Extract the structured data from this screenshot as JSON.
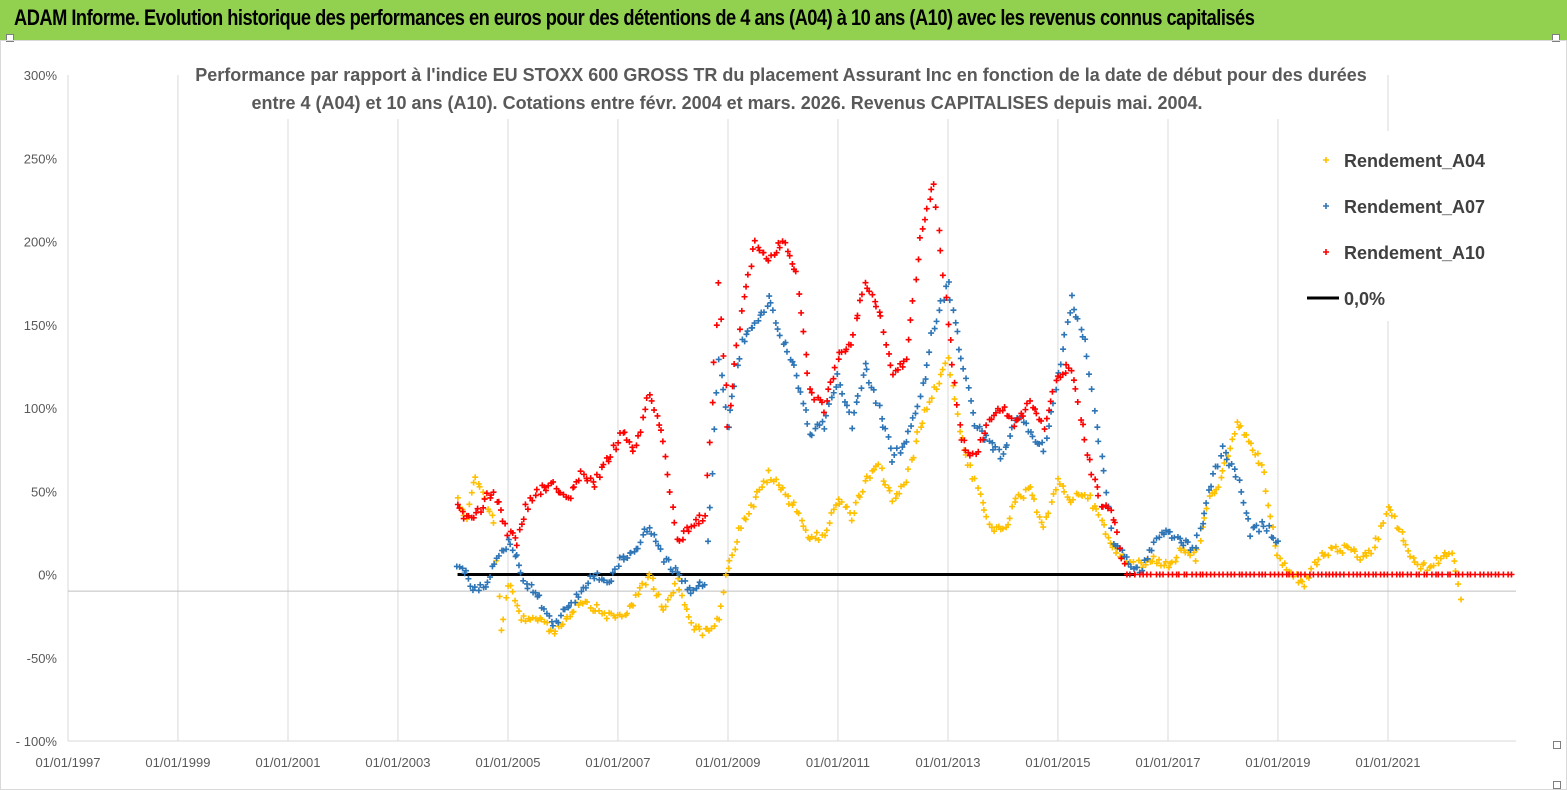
{
  "header": {
    "title": "ADAM Informe. Evolution historique des performances en euros pour des détentions de 4 ans (A04) à 10 ans (A10) avec les revenus connus capitalisés",
    "background": "#92d050"
  },
  "chart_data": {
    "type": "scatter",
    "title_lines": [
      "Performance par rapport à l'indice EU STOXX 600 GROSS TR  du placement Assurant Inc en fonction de la date de début pour des durées",
      "entre 4 (A04) et 10 ans (A10).  Cotations entre févr. 2004 et mars. 2026. Revenus CAPITALISES depuis mai. 2004."
    ],
    "x_type": "date",
    "x_ticks": [
      "01/01/1997",
      "01/01/1999",
      "01/01/2001",
      "01/01/2003",
      "01/01/2005",
      "01/01/2007",
      "01/01/2009",
      "01/01/2011",
      "01/01/2013",
      "01/01/2015",
      "01/01/2017",
      "01/01/2019",
      "01/01/2021"
    ],
    "xlim": [
      "1997-01-01",
      "2023-05-01"
    ],
    "ylim": [
      -100,
      300
    ],
    "y_ticks": [
      -100,
      -50,
      0,
      50,
      100,
      150,
      200,
      250,
      300
    ],
    "y_tick_labels": [
      "- 100%",
      "-50%",
      "0%",
      "50%",
      "100%",
      "150%",
      "200%",
      "250%",
      "300%"
    ],
    "grid": "vertical",
    "legend_position": "top-right",
    "series": [
      {
        "name": "Rendement_A04",
        "color": "#ffc000",
        "marker": "+",
        "points": [
          [
            "2004-02-01",
            45
          ],
          [
            "2004-04-01",
            35
          ],
          [
            "2004-06-01",
            60
          ],
          [
            "2004-08-01",
            45
          ],
          [
            "2004-10-01",
            30
          ],
          [
            "2004-11-15",
            -35
          ],
          [
            "2005-01-01",
            -5
          ],
          [
            "2005-03-01",
            -20
          ],
          [
            "2005-05-01",
            -30
          ],
          [
            "2005-08-01",
            -25
          ],
          [
            "2005-11-01",
            -35
          ],
          [
            "2006-02-01",
            -25
          ],
          [
            "2006-05-01",
            -15
          ],
          [
            "2006-08-01",
            -20
          ],
          [
            "2006-11-01",
            -25
          ],
          [
            "2007-02-01",
            -25
          ],
          [
            "2007-05-01",
            -15
          ],
          [
            "2007-08-01",
            0
          ],
          [
            "2007-11-01",
            -20
          ],
          [
            "2008-02-01",
            -5
          ],
          [
            "2008-05-01",
            -30
          ],
          [
            "2008-08-01",
            -35
          ],
          [
            "2008-11-01",
            -25
          ],
          [
            "2009-01-01",
            5
          ],
          [
            "2009-04-01",
            30
          ],
          [
            "2009-07-01",
            45
          ],
          [
            "2009-10-01",
            60
          ],
          [
            "2010-01-01",
            50
          ],
          [
            "2010-04-01",
            40
          ],
          [
            "2010-07-01",
            20
          ],
          [
            "2010-10-01",
            25
          ],
          [
            "2011-01-01",
            45
          ],
          [
            "2011-04-01",
            35
          ],
          [
            "2011-07-01",
            55
          ],
          [
            "2011-10-01",
            65
          ],
          [
            "2012-01-01",
            45
          ],
          [
            "2012-04-01",
            55
          ],
          [
            "2012-07-01",
            90
          ],
          [
            "2012-10-01",
            110
          ],
          [
            "2013-01-01",
            130
          ],
          [
            "2013-04-01",
            80
          ],
          [
            "2013-07-01",
            55
          ],
          [
            "2013-10-01",
            30
          ],
          [
            "2014-01-01",
            25
          ],
          [
            "2014-04-01",
            45
          ],
          [
            "2014-07-01",
            50
          ],
          [
            "2014-10-01",
            30
          ],
          [
            "2015-01-01",
            55
          ],
          [
            "2015-04-01",
            45
          ],
          [
            "2015-07-01",
            50
          ],
          [
            "2015-10-01",
            35
          ],
          [
            "2016-01-01",
            15
          ],
          [
            "2016-04-01",
            10
          ],
          [
            "2016-07-01",
            5
          ],
          [
            "2016-10-01",
            10
          ],
          [
            "2017-01-01",
            5
          ],
          [
            "2017-04-01",
            15
          ],
          [
            "2017-07-01",
            10
          ],
          [
            "2017-10-01",
            45
          ],
          [
            "2018-01-01",
            60
          ],
          [
            "2018-04-01",
            90
          ],
          [
            "2018-07-01",
            80
          ],
          [
            "2018-10-01",
            60
          ],
          [
            "2019-01-01",
            10
          ],
          [
            "2019-04-01",
            0
          ],
          [
            "2019-07-01",
            -5
          ],
          [
            "2019-10-01",
            10
          ],
          [
            "2020-01-01",
            15
          ],
          [
            "2020-04-01",
            15
          ],
          [
            "2020-07-01",
            10
          ],
          [
            "2020-10-01",
            15
          ],
          [
            "2021-01-01",
            40
          ],
          [
            "2021-04-01",
            25
          ],
          [
            "2021-07-01",
            5
          ],
          [
            "2021-10-01",
            5
          ],
          [
            "2022-01-01",
            10
          ],
          [
            "2022-03-01",
            15
          ],
          [
            "2022-05-01",
            -15
          ]
        ]
      },
      {
        "name": "Rendement_A07",
        "color": "#2e75b6",
        "marker": "+",
        "points": [
          [
            "2004-02-01",
            5
          ],
          [
            "2004-04-01",
            0
          ],
          [
            "2004-06-01",
            -10
          ],
          [
            "2004-08-01",
            -5
          ],
          [
            "2004-10-01",
            5
          ],
          [
            "2005-01-01",
            20
          ],
          [
            "2005-03-01",
            10
          ],
          [
            "2005-05-01",
            -5
          ],
          [
            "2005-08-01",
            -15
          ],
          [
            "2005-11-01",
            -30
          ],
          [
            "2006-02-01",
            -20
          ],
          [
            "2006-05-01",
            -10
          ],
          [
            "2006-08-01",
            0
          ],
          [
            "2006-11-01",
            -5
          ],
          [
            "2007-02-01",
            10
          ],
          [
            "2007-05-01",
            15
          ],
          [
            "2007-08-01",
            30
          ],
          [
            "2007-11-01",
            10
          ],
          [
            "2008-02-01",
            0
          ],
          [
            "2008-05-01",
            -10
          ],
          [
            "2008-08-01",
            -5
          ],
          [
            "2008-11-01",
            130
          ],
          [
            "2009-01-01",
            90
          ],
          [
            "2009-04-01",
            140
          ],
          [
            "2009-07-01",
            150
          ],
          [
            "2009-10-01",
            165
          ],
          [
            "2010-01-01",
            140
          ],
          [
            "2010-04-01",
            120
          ],
          [
            "2010-07-01",
            85
          ],
          [
            "2010-10-01",
            90
          ],
          [
            "2011-01-01",
            120
          ],
          [
            "2011-04-01",
            90
          ],
          [
            "2011-07-01",
            125
          ],
          [
            "2011-10-01",
            100
          ],
          [
            "2012-01-01",
            70
          ],
          [
            "2012-04-01",
            80
          ],
          [
            "2012-07-01",
            105
          ],
          [
            "2012-10-01",
            150
          ],
          [
            "2013-01-01",
            175
          ],
          [
            "2013-04-01",
            130
          ],
          [
            "2013-07-01",
            90
          ],
          [
            "2013-10-01",
            80
          ],
          [
            "2014-01-01",
            70
          ],
          [
            "2014-04-01",
            95
          ],
          [
            "2014-07-01",
            85
          ],
          [
            "2014-10-01",
            75
          ],
          [
            "2015-01-01",
            120
          ],
          [
            "2015-04-01",
            165
          ],
          [
            "2015-07-01",
            140
          ],
          [
            "2015-10-01",
            80
          ],
          [
            "2016-01-01",
            20
          ],
          [
            "2016-04-01",
            10
          ],
          [
            "2016-07-01",
            0
          ],
          [
            "2016-10-01",
            20
          ],
          [
            "2017-01-01",
            25
          ],
          [
            "2017-04-01",
            20
          ],
          [
            "2017-07-01",
            15
          ],
          [
            "2017-10-01",
            50
          ],
          [
            "2018-01-01",
            75
          ],
          [
            "2018-04-01",
            60
          ],
          [
            "2018-07-01",
            25
          ],
          [
            "2018-10-01",
            30
          ],
          [
            "2019-01-01",
            20
          ]
        ]
      },
      {
        "name": "Rendement_A10",
        "color": "#ff0000",
        "marker": "+",
        "points": [
          [
            "2004-02-01",
            40
          ],
          [
            "2004-04-01",
            35
          ],
          [
            "2004-06-01",
            35
          ],
          [
            "2004-08-01",
            45
          ],
          [
            "2004-10-01",
            50
          ],
          [
            "2005-01-01",
            25
          ],
          [
            "2005-03-01",
            20
          ],
          [
            "2005-05-01",
            40
          ],
          [
            "2005-08-01",
            50
          ],
          [
            "2005-11-01",
            55
          ],
          [
            "2006-02-01",
            45
          ],
          [
            "2006-05-01",
            60
          ],
          [
            "2006-08-01",
            55
          ],
          [
            "2006-11-01",
            70
          ],
          [
            "2007-02-01",
            85
          ],
          [
            "2007-05-01",
            75
          ],
          [
            "2007-08-01",
            110
          ],
          [
            "2007-11-01",
            80
          ],
          [
            "2008-02-01",
            20
          ],
          [
            "2008-05-01",
            30
          ],
          [
            "2008-08-01",
            35
          ],
          [
            "2008-11-01",
            175
          ],
          [
            "2009-01-01",
            90
          ],
          [
            "2009-04-01",
            160
          ],
          [
            "2009-07-01",
            200
          ],
          [
            "2009-10-01",
            190
          ],
          [
            "2010-01-01",
            200
          ],
          [
            "2010-04-01",
            180
          ],
          [
            "2010-07-01",
            110
          ],
          [
            "2010-10-01",
            100
          ],
          [
            "2011-01-01",
            130
          ],
          [
            "2011-04-01",
            140
          ],
          [
            "2011-07-01",
            175
          ],
          [
            "2011-10-01",
            160
          ],
          [
            "2012-01-01",
            120
          ],
          [
            "2012-04-01",
            130
          ],
          [
            "2012-07-01",
            200
          ],
          [
            "2012-10-01",
            235
          ],
          [
            "2013-01-01",
            150
          ],
          [
            "2013-04-01",
            80
          ],
          [
            "2013-07-01",
            70
          ],
          [
            "2013-10-01",
            95
          ],
          [
            "2014-01-01",
            100
          ],
          [
            "2014-04-01",
            90
          ],
          [
            "2014-07-01",
            105
          ],
          [
            "2014-10-01",
            90
          ],
          [
            "2015-01-01",
            120
          ],
          [
            "2015-04-01",
            125
          ],
          [
            "2015-07-01",
            80
          ],
          [
            "2015-10-01",
            45
          ],
          [
            "2016-01-01",
            35
          ],
          [
            "2016-04-01",
            0
          ],
          [
            "2017-01-01",
            0
          ],
          [
            "2018-01-01",
            0
          ],
          [
            "2019-01-01",
            0
          ],
          [
            "2020-01-01",
            0
          ],
          [
            "2021-01-01",
            0
          ],
          [
            "2022-01-01",
            0
          ],
          [
            "2023-04-01",
            0
          ]
        ]
      }
    ],
    "reference_line": {
      "name": "0,0%",
      "value": 0,
      "color": "#000000",
      "x_start": "2004-02-01",
      "x_end": "2016-06-01"
    }
  }
}
